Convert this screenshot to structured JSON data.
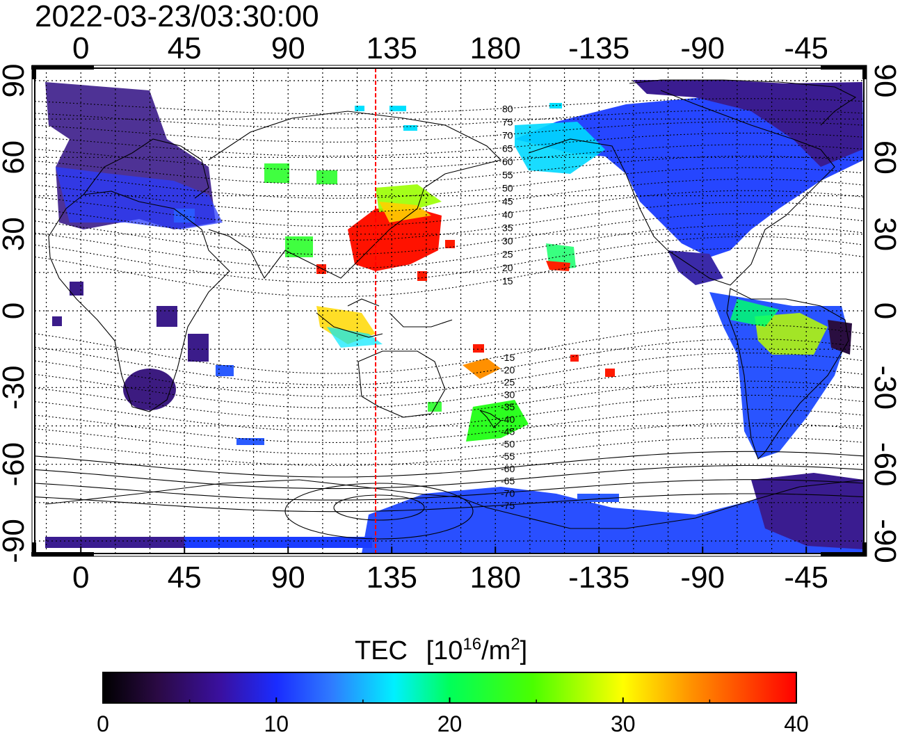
{
  "timestamp": "2022-03-23/03:30:00",
  "lon_ticks": [
    "0",
    "45",
    "90",
    "135",
    "180",
    "-135",
    "-90",
    "-45"
  ],
  "lat_ticks": [
    "90",
    "60",
    "30",
    "0",
    "-30",
    "-60",
    "-90"
  ],
  "mag_lat_labels_north": [
    "80",
    "75",
    "70",
    "65",
    "60",
    "55",
    "50",
    "45",
    "40",
    "35",
    "30",
    "25",
    "20",
    "15"
  ],
  "mag_lat_labels_south": [
    "-15",
    "-20",
    "-25",
    "-30",
    "-35",
    "-40",
    "-45",
    "-50",
    "-55",
    "-60",
    "-65",
    "-70",
    "-75"
  ],
  "colorbar": {
    "title": "TEC",
    "unit_prefix": "[10",
    "unit_exp": "16",
    "unit_mid": "/m",
    "unit_exp2": "2",
    "unit_suffix": "]",
    "ticks": [
      "0",
      "10",
      "20",
      "30",
      "40"
    ],
    "min": 0,
    "max": 40,
    "stops": [
      "#000000",
      "#3a0b5a",
      "#2a00c8",
      "#0040ff",
      "#00c8ff",
      "#00ff80",
      "#40ff00",
      "#ffff00",
      "#ff8000",
      "#ff0000"
    ]
  },
  "noon_meridian_lon": 128,
  "map": {
    "lon_range": [
      -20,
      340
    ],
    "lat_range": [
      -90,
      90
    ],
    "grid": "dotted every 15 degrees",
    "background": "#ffffff"
  }
}
